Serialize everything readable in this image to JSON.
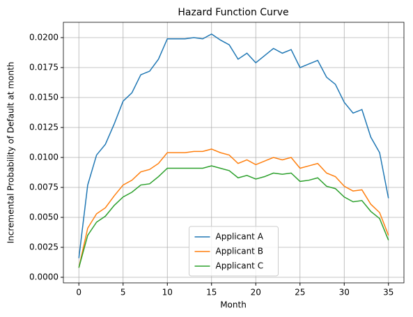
{
  "chart_data": {
    "type": "line",
    "title": "Hazard Function Curve",
    "x_label": "Month",
    "y_label": "Incremental Probability of Default at month",
    "x": [
      0,
      1,
      2,
      3,
      4,
      5,
      6,
      7,
      8,
      9,
      10,
      11,
      12,
      13,
      14,
      15,
      16,
      17,
      18,
      19,
      20,
      21,
      22,
      23,
      24,
      25,
      26,
      27,
      28,
      29,
      30,
      31,
      32,
      33,
      34,
      35
    ],
    "series": [
      {
        "name": "Applicant A",
        "color": "#1f77b4",
        "values": [
          0.0016,
          0.0077,
          0.0102,
          0.0111,
          0.0128,
          0.0147,
          0.0154,
          0.0169,
          0.0172,
          0.0182,
          0.0199,
          0.0199,
          0.0199,
          0.02,
          0.0199,
          0.0203,
          0.0198,
          0.0194,
          0.0182,
          0.0187,
          0.0179,
          0.0185,
          0.0191,
          0.0187,
          0.019,
          0.0175,
          0.0178,
          0.0181,
          0.0167,
          0.0161,
          0.0146,
          0.0137,
          0.014,
          0.0117,
          0.0104,
          0.0066
        ]
      },
      {
        "name": "Applicant B",
        "color": "#ff7f0e",
        "values": [
          0.0008,
          0.0041,
          0.0053,
          0.0058,
          0.0068,
          0.0077,
          0.0081,
          0.0088,
          0.009,
          0.0095,
          0.0104,
          0.0104,
          0.0104,
          0.0105,
          0.0105,
          0.0107,
          0.0104,
          0.0102,
          0.0095,
          0.0098,
          0.0094,
          0.0097,
          0.01,
          0.0098,
          0.01,
          0.0091,
          0.0093,
          0.0095,
          0.0087,
          0.0084,
          0.0076,
          0.0072,
          0.0073,
          0.0061,
          0.0054,
          0.0035
        ]
      },
      {
        "name": "Applicant C",
        "color": "#2ca02c",
        "values": [
          0.0008,
          0.0035,
          0.0046,
          0.0051,
          0.006,
          0.0067,
          0.0071,
          0.0077,
          0.0078,
          0.0084,
          0.0091,
          0.0091,
          0.0091,
          0.0091,
          0.0091,
          0.0093,
          0.0091,
          0.0089,
          0.0083,
          0.0085,
          0.0082,
          0.0084,
          0.0087,
          0.0086,
          0.0087,
          0.008,
          0.0081,
          0.0083,
          0.0076,
          0.0074,
          0.0067,
          0.0063,
          0.0064,
          0.0055,
          0.0049,
          0.0031
        ]
      }
    ],
    "xlim": [
      -1.75,
      36.75
    ],
    "xticks": [
      0,
      5,
      10,
      15,
      20,
      25,
      30,
      35
    ],
    "ylim": [
      -0.000465,
      0.02128
    ],
    "yticks": [
      {
        "value": 0,
        "label": "0.0000"
      },
      {
        "value": 0.0025,
        "label": "0.0025"
      },
      {
        "value": 0.005,
        "label": "0.0050"
      },
      {
        "value": 0.0075,
        "label": "0.0075"
      },
      {
        "value": 0.01,
        "label": "0.0100"
      },
      {
        "value": 0.0125,
        "label": "0.0125"
      },
      {
        "value": 0.015,
        "label": "0.0150"
      },
      {
        "value": 0.0175,
        "label": "0.0175"
      },
      {
        "value": 0.02,
        "label": "0.0200"
      }
    ],
    "grid": true,
    "legend": "lower center"
  }
}
